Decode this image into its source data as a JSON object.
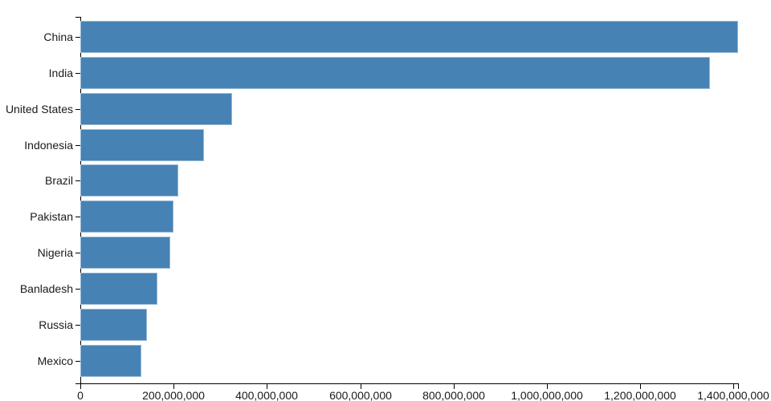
{
  "chart_data": {
    "type": "bar",
    "orientation": "horizontal",
    "title": "",
    "xlabel": "",
    "ylabel": "",
    "categories": [
      "China",
      "India",
      "United States",
      "Indonesia",
      "Brazil",
      "Pakistan",
      "Nigeria",
      "Banladesh",
      "Russia",
      "Mexico"
    ],
    "values": [
      1410000000,
      1350000000,
      325000000,
      265000000,
      210000000,
      199000000,
      193000000,
      166000000,
      143000000,
      131000000
    ],
    "xlim": [
      0,
      1410000000
    ],
    "x_ticks": [
      0,
      200000000,
      400000000,
      600000000,
      800000000,
      1000000000,
      1200000000,
      1400000000
    ],
    "x_tick_labels": [
      "0",
      "200,000,000",
      "400,000,000",
      "600,000,000",
      "800,000,000",
      "1,000,000,000",
      "1,200,000,000",
      "1,400,000,000"
    ],
    "grid": false,
    "legend": null,
    "bar_color": "#4682b4",
    "axis_color": "#000000",
    "text_color": "#1a1a1a",
    "background_color": "#ffffff"
  }
}
